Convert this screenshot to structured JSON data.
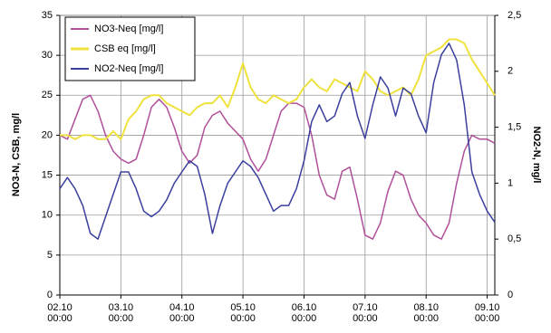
{
  "chart_data": {
    "type": "line",
    "y_label": "NO3-N, CSB, mg/l",
    "y2_label": "NO2-N, mg/l",
    "x": [
      "02.10 00:00",
      "02.10 03:00",
      "02.10 06:00",
      "02.10 09:00",
      "02.10 12:00",
      "02.10 15:00",
      "02.10 18:00",
      "02.10 21:00",
      "03.10 00:00",
      "03.10 03:00",
      "03.10 06:00",
      "03.10 09:00",
      "03.10 12:00",
      "03.10 15:00",
      "03.10 18:00",
      "03.10 21:00",
      "04.10 00:00",
      "04.10 03:00",
      "04.10 06:00",
      "04.10 09:00",
      "04.10 12:00",
      "04.10 15:00",
      "04.10 18:00",
      "04.10 21:00",
      "05.10 00:00",
      "05.10 03:00",
      "05.10 06:00",
      "05.10 09:00",
      "05.10 12:00",
      "05.10 15:00",
      "05.10 18:00",
      "05.10 21:00",
      "06.10 00:00",
      "06.10 03:00",
      "06.10 06:00",
      "06.10 09:00",
      "06.10 12:00",
      "06.10 15:00",
      "06.10 18:00",
      "06.10 21:00",
      "07.10 00:00",
      "07.10 03:00",
      "07.10 06:00",
      "07.10 09:00",
      "07.10 12:00",
      "07.10 15:00",
      "07.10 18:00",
      "07.10 21:00",
      "08.10 00:00",
      "08.10 03:00",
      "08.10 06:00",
      "08.10 09:00",
      "08.10 12:00",
      "08.10 15:00",
      "08.10 18:00",
      "08.10 21:00",
      "09.10 00:00",
      "09.10 03:00"
    ],
    "series": [
      {
        "name": "NO3-Neq [mg/l]",
        "color": "#b0509a",
        "values": [
          20,
          19.5,
          22,
          24.5,
          25,
          23,
          20,
          18,
          17,
          16.5,
          17,
          20,
          23.5,
          24.5,
          23.5,
          21,
          18,
          16.5,
          17.5,
          21,
          22.5,
          23,
          21.5,
          20.5,
          19.5,
          17,
          15.5,
          17,
          20,
          23,
          24,
          24,
          23.5,
          20,
          15,
          12.5,
          12,
          15.5,
          16,
          12,
          7.5,
          7,
          9,
          13,
          15.5,
          15,
          12,
          10,
          9,
          7.5,
          7,
          9,
          14,
          18,
          20,
          19.5,
          19.5,
          19
        ]
      },
      {
        "name": "CSB eq [mg/l]",
        "color": "#efe23c",
        "values": [
          20,
          20,
          19.5,
          20,
          20,
          19.5,
          19.5,
          20.5,
          19.5,
          22,
          23,
          24.5,
          25,
          25,
          24,
          23.5,
          23,
          22.5,
          23.5,
          24,
          24,
          25,
          23.5,
          26,
          29,
          26,
          24.5,
          24,
          25,
          24.5,
          24,
          24.5,
          26,
          27,
          26,
          25.5,
          27,
          26.5,
          26,
          25.5,
          28,
          27,
          25.5,
          25,
          25.5,
          26,
          25,
          27,
          30,
          30.5,
          31,
          32,
          32,
          31.5,
          29.5,
          28,
          26.5,
          25
        ]
      },
      {
        "name": "NO2-Neq [mg/l]",
        "color": "#3b3f9e",
        "axis": "y2",
        "values": [
          0.95,
          1.05,
          0.95,
          0.8,
          0.55,
          0.5,
          0.7,
          0.9,
          1.1,
          1.1,
          0.95,
          0.75,
          0.7,
          0.75,
          0.85,
          1.0,
          1.1,
          1.2,
          1.15,
          0.9,
          0.55,
          0.8,
          1.0,
          1.1,
          1.2,
          1.15,
          1.05,
          0.9,
          0.75,
          0.8,
          0.8,
          0.95,
          1.2,
          1.55,
          1.7,
          1.55,
          1.6,
          1.8,
          1.9,
          1.6,
          1.4,
          1.7,
          1.95,
          1.85,
          1.6,
          1.85,
          1.8,
          1.6,
          1.45,
          1.9,
          2.15,
          2.25,
          2.1,
          1.7,
          1.1,
          0.9,
          0.75,
          0.65
        ]
      }
    ],
    "xlim": [
      "02.10 00:00",
      "09.10 03:00"
    ],
    "xticks": [
      {
        "value": "02.10 00:00",
        "label": "02.10\n00:00"
      },
      {
        "value": "03.10 00:00",
        "label": "03.10\n00:00"
      },
      {
        "value": "04.10 00:00",
        "label": "04.10\n00:00"
      },
      {
        "value": "05.10 00:00",
        "label": "05.10\n00:00"
      },
      {
        "value": "06.10 00:00",
        "label": "06.10\n00:00"
      },
      {
        "value": "07.10 00:00",
        "label": "07.10\n00:00"
      },
      {
        "value": "08.10 00:00",
        "label": "08.10\n00:00"
      },
      {
        "value": "09.10 00:00",
        "label": "09.10\n00:00"
      }
    ],
    "ylim": [
      0,
      35
    ],
    "yticks": [
      0,
      5,
      10,
      15,
      20,
      25,
      30,
      35
    ],
    "y2lim": [
      0,
      2.5
    ],
    "y2ticks": [
      0,
      {
        "value": 0.5,
        "label": "0,5"
      },
      1,
      {
        "value": 1.5,
        "label": "1,5"
      },
      2,
      {
        "value": 2.5,
        "label": "2,5"
      }
    ],
    "grid": true,
    "legend": "upper left"
  }
}
